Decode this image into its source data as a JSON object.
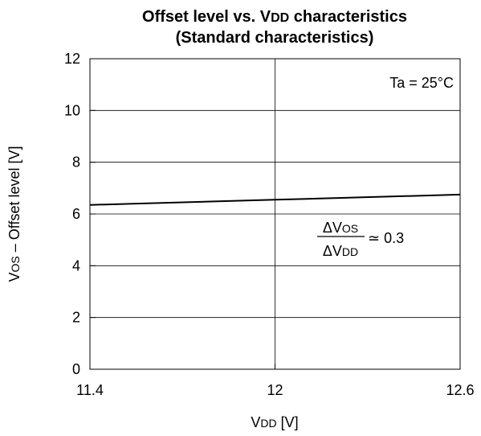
{
  "chart_data": {
    "type": "line",
    "title_line1_parts": [
      "Offset level vs. V",
      "DD",
      " characteristics"
    ],
    "title_line2": "(Standard characteristics)",
    "xlabel_parts": [
      "V",
      "DD",
      " [V]"
    ],
    "ylabel_parts": [
      "V",
      "OS",
      " – Offset level [V]"
    ],
    "xlim": [
      11.4,
      12.6
    ],
    "ylim": [
      0,
      12
    ],
    "x_ticks": [
      11.4,
      12,
      12.6
    ],
    "x_tick_labels": [
      "11.4",
      "12",
      "12.6"
    ],
    "y_ticks": [
      0,
      2,
      4,
      6,
      8,
      10,
      12
    ],
    "y_tick_labels": [
      "0",
      "2",
      "4",
      "6",
      "8",
      "10",
      "12"
    ],
    "grid": true,
    "series": [
      {
        "x": [
          11.4,
          12,
          12.6
        ],
        "y": [
          6.35,
          6.55,
          6.75
        ]
      }
    ],
    "annotations": {
      "condition": "Ta = 25°C",
      "ratio_num_parts": [
        "ΔV",
        "OS"
      ],
      "ratio_den_parts": [
        "ΔV",
        "DD"
      ],
      "ratio_value": "≃ 0.3"
    },
    "colors": {
      "line": "#000000",
      "grid": "#000000",
      "frame": "#000000"
    }
  }
}
